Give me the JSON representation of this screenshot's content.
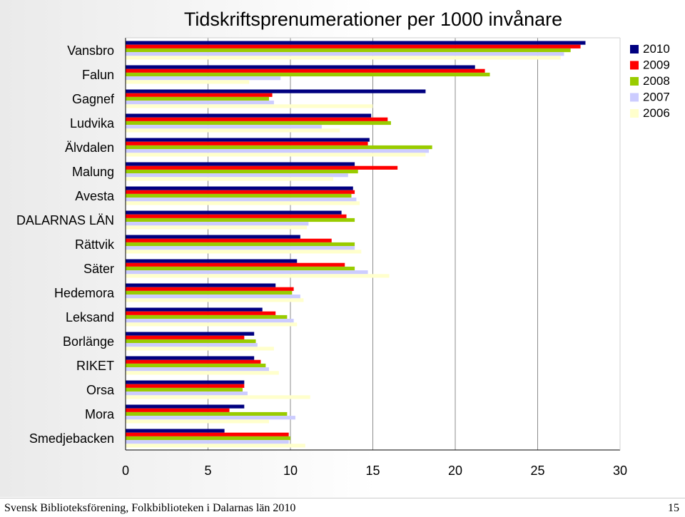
{
  "footer": {
    "text": "Svensk Biblioteksförening, Folkbiblioteken i Dalarnas län 2010",
    "page_number": "15"
  },
  "chart_data": {
    "type": "bar",
    "orientation": "horizontal",
    "title": "Tidskriftsprenumerationer per 1000 invånare",
    "xlabel": "",
    "ylabel": "",
    "xlim": [
      0,
      30
    ],
    "x_ticks": [
      0,
      5,
      10,
      15,
      20,
      25,
      30
    ],
    "grid": true,
    "legend_position": "top-right",
    "categories": [
      "Vansbro",
      "Falun",
      "Gagnef",
      "Ludvika",
      "Älvdalen",
      "Malung",
      "Avesta",
      "DALARNAS LÄN",
      "Rättvik",
      "Säter",
      "Hedemora",
      "Leksand",
      "Borlänge",
      "RIKET",
      "Orsa",
      "Mora",
      "Smedjebacken"
    ],
    "series": [
      {
        "name": "2010",
        "color": "#000080",
        "values": [
          27.9,
          21.2,
          18.2,
          14.9,
          14.8,
          13.9,
          13.8,
          13.1,
          10.6,
          10.4,
          9.1,
          8.3,
          7.8,
          7.8,
          7.2,
          7.2,
          6.0
        ]
      },
      {
        "name": "2009",
        "color": "#ff0000",
        "values": [
          27.6,
          21.8,
          8.9,
          15.9,
          14.7,
          16.5,
          13.9,
          13.4,
          12.5,
          13.3,
          10.2,
          9.1,
          7.2,
          8.2,
          7.2,
          6.3,
          9.9
        ]
      },
      {
        "name": "2008",
        "color": "#99cc00",
        "values": [
          27.0,
          22.1,
          8.7,
          16.1,
          18.6,
          14.1,
          13.7,
          13.9,
          13.9,
          13.9,
          10.1,
          9.8,
          7.9,
          8.5,
          7.1,
          9.8,
          10.0
        ]
      },
      {
        "name": "2007",
        "color": "#ccccff",
        "values": [
          26.6,
          9.4,
          9.0,
          11.9,
          18.4,
          13.5,
          14.0,
          11.1,
          13.9,
          14.7,
          10.6,
          10.2,
          8.0,
          8.7,
          7.4,
          10.3,
          9.9
        ]
      },
      {
        "name": "2006",
        "color": "#ffffcc",
        "values": [
          26.4,
          7.5,
          15.0,
          13.0,
          18.2,
          12.6,
          14.2,
          11.0,
          14.3,
          16.0,
          10.8,
          10.4,
          9.0,
          9.3,
          11.2,
          8.7,
          10.9
        ]
      }
    ]
  }
}
